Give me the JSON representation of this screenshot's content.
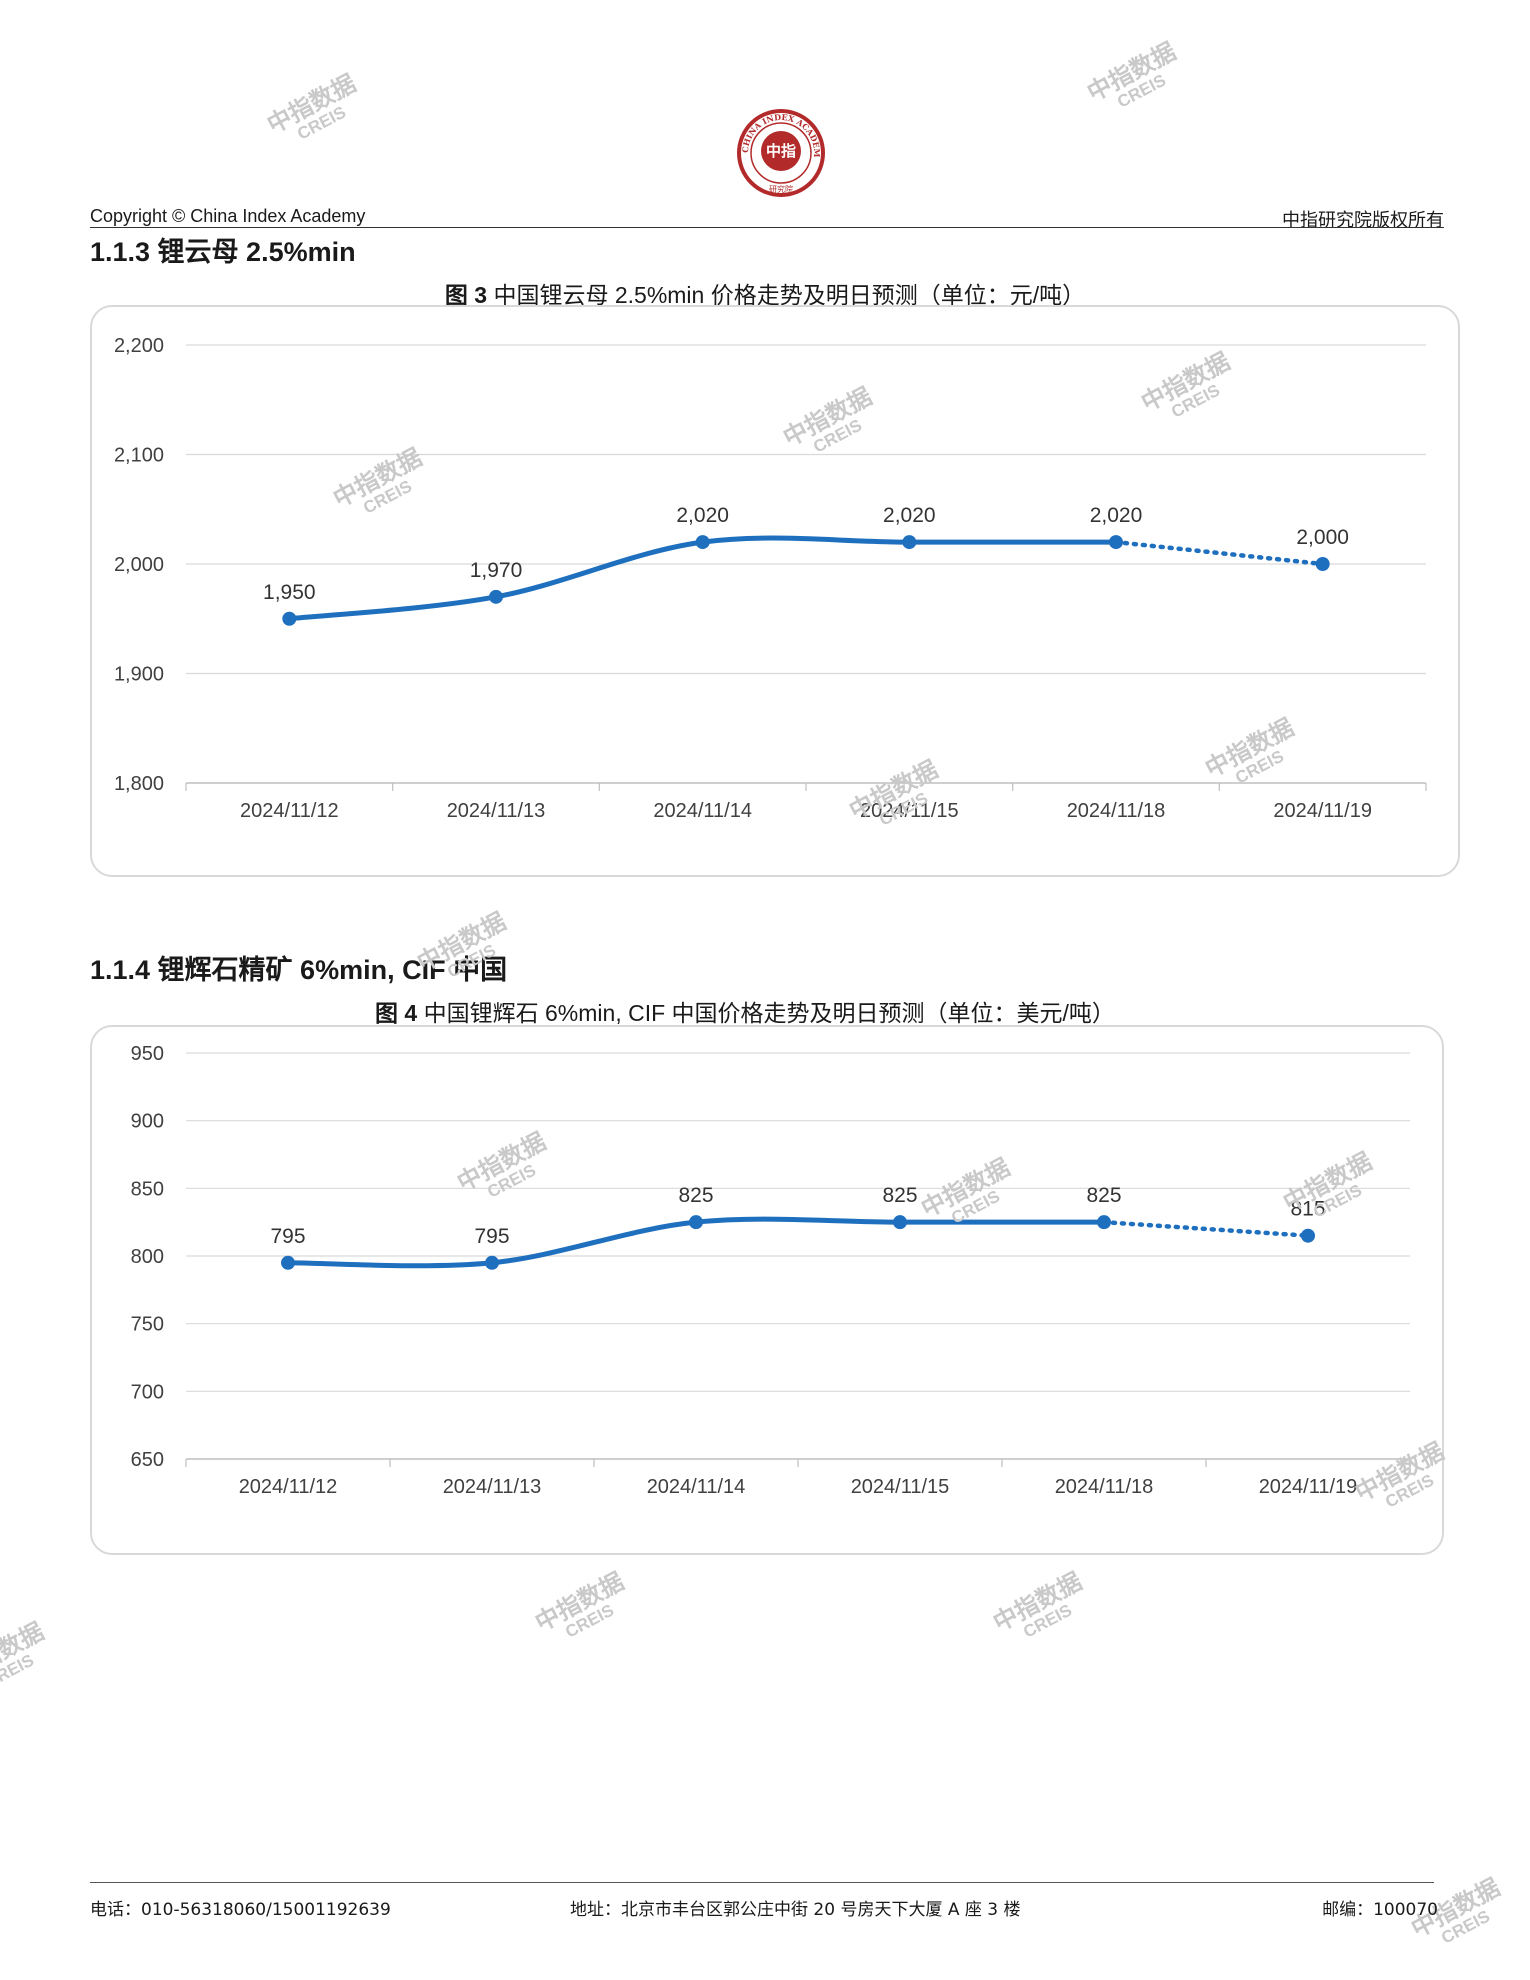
{
  "header": {
    "copyright": "Copyright © China Index Academy",
    "rights": "中指研究院版权所有",
    "seal": {
      "center": "中指",
      "top_ring": "CHINA INDEX ACADEMY",
      "bottom": "研究院"
    }
  },
  "sections": [
    {
      "heading": "1.1.3 锂云母 2.5%min",
      "fig_num": "图 3",
      "fig_title": " 中国锂云母 2.5%min 价格走势及明日预测（单位：元/吨）"
    },
    {
      "heading": "1.1.4 锂辉石精矿 6%min, CIF 中国",
      "fig_num": "图 4",
      "fig_title": " 中国锂辉石 6%min, CIF 中国价格走势及明日预测（单位：美元/吨）"
    }
  ],
  "chart_data": [
    {
      "type": "line",
      "categories": [
        "2024/11/12",
        "2024/11/13",
        "2024/11/14",
        "2024/11/15",
        "2024/11/18",
        "2024/11/19"
      ],
      "values": [
        1950,
        1970,
        2020,
        2020,
        2020,
        2000
      ],
      "data_labels": [
        "1,950",
        "1,970",
        "2,020",
        "2,020",
        "2,020",
        "2,000"
      ],
      "forecast_from_index": 4,
      "ylim": [
        1800,
        2200
      ],
      "yticks": [
        1800,
        1900,
        2000,
        2100,
        2200
      ],
      "ytick_labels": [
        "1,800",
        "1,900",
        "2,000",
        "2,100",
        "2,200"
      ],
      "grid": true,
      "color": "#1f6fbf"
    },
    {
      "type": "line",
      "categories": [
        "2024/11/12",
        "2024/11/13",
        "2024/11/14",
        "2024/11/15",
        "2024/11/18",
        "2024/11/19"
      ],
      "values": [
        795,
        795,
        825,
        825,
        825,
        815
      ],
      "data_labels": [
        "795",
        "795",
        "825",
        "825",
        "825",
        "815"
      ],
      "forecast_from_index": 4,
      "ylim": [
        650,
        950
      ],
      "yticks": [
        650,
        700,
        750,
        800,
        850,
        900,
        950
      ],
      "ytick_labels": [
        "650",
        "700",
        "750",
        "800",
        "850",
        "900",
        "950"
      ],
      "grid": true,
      "color": "#1f6fbf"
    }
  ],
  "watermark": {
    "line1": "中指数据",
    "line2": "CREIS"
  },
  "footer": {
    "phone": "电话：010-56318060/15001192639",
    "address": "地址：北京市丰台区郭公庄中街 20 号房天下大厦 A 座 3 楼",
    "postcode": "邮编：100070"
  }
}
